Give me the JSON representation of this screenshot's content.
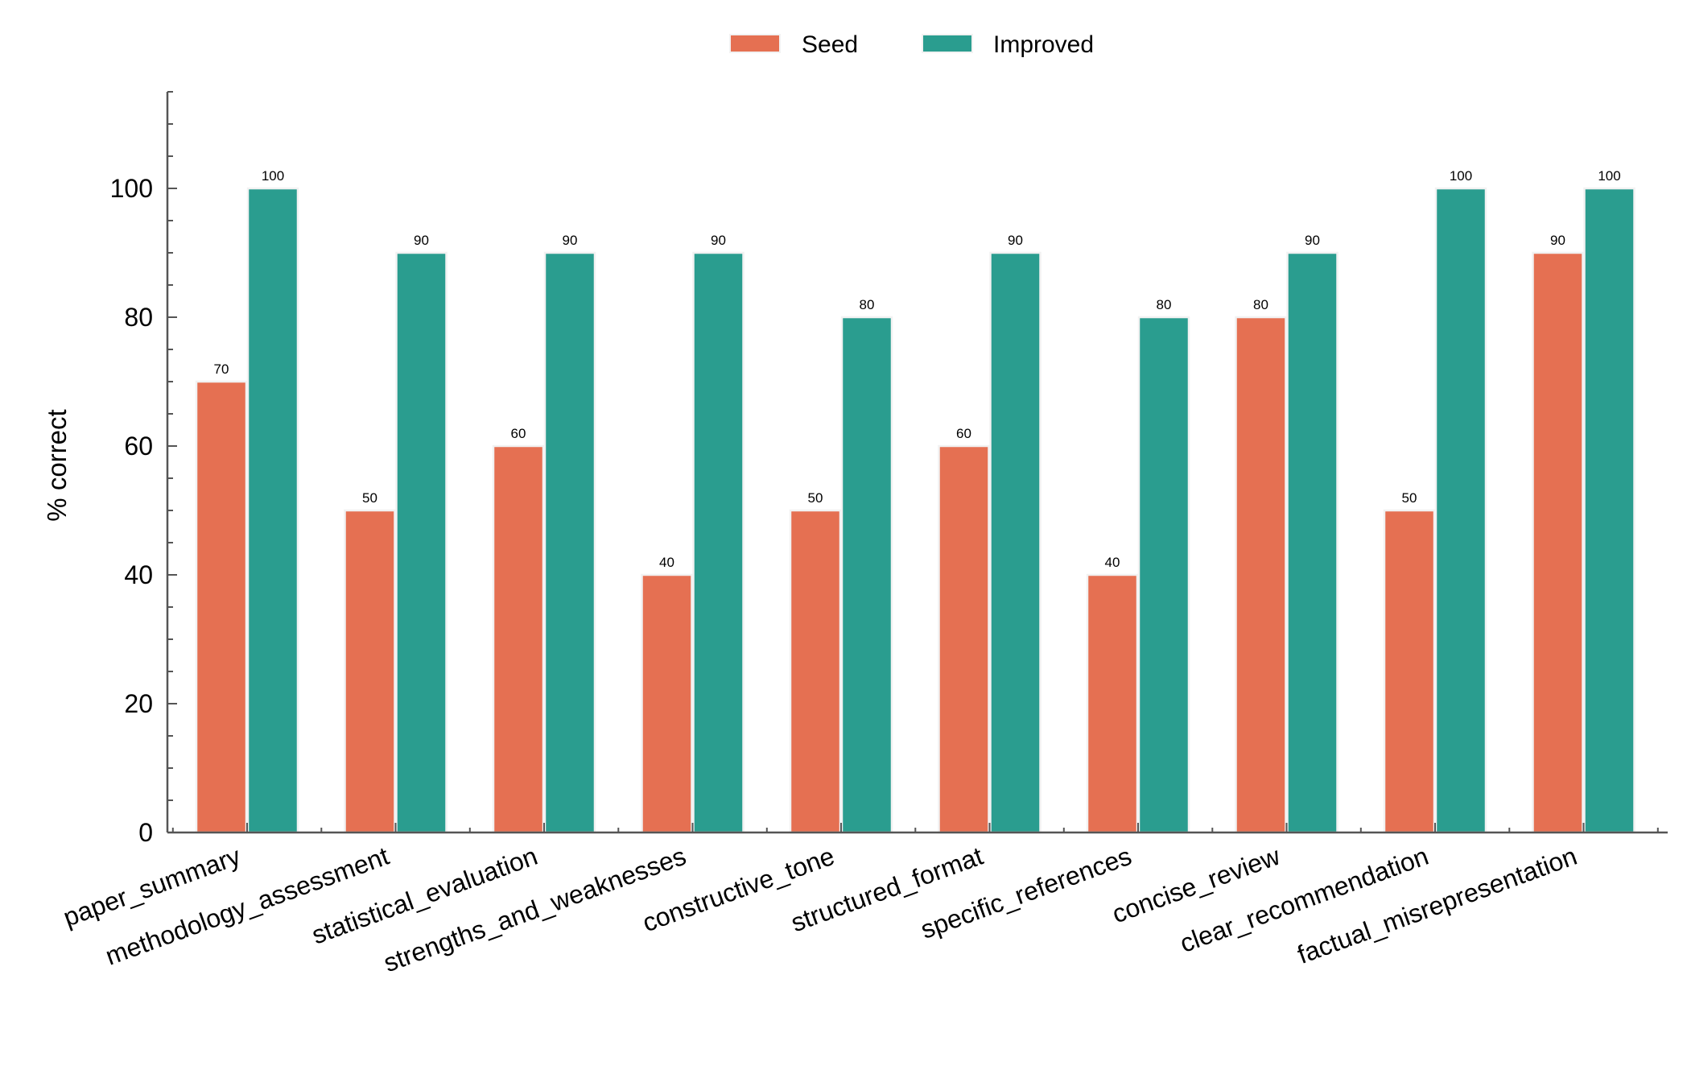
{
  "chart_data": {
    "type": "bar",
    "title": "",
    "xlabel": "",
    "ylabel": "% correct",
    "ylim": [
      0,
      115
    ],
    "yticks": [
      0,
      20,
      40,
      60,
      80,
      100
    ],
    "grid": false,
    "legend_position": "top-center",
    "categories": [
      "paper_summary",
      "methodology_assessment",
      "statistical_evaluation",
      "strengths_and_weaknesses",
      "constructive_tone",
      "structured_format",
      "specific_references",
      "concise_review",
      "clear_recommendation",
      "factual_misrepresentation"
    ],
    "series": [
      {
        "name": "Seed",
        "color": "#e57052",
        "values": [
          70,
          50,
          60,
          40,
          50,
          60,
          40,
          80,
          50,
          90
        ]
      },
      {
        "name": "Improved",
        "color": "#2a9d8f",
        "values": [
          100,
          90,
          90,
          90,
          80,
          90,
          80,
          90,
          100,
          100
        ]
      }
    ]
  }
}
